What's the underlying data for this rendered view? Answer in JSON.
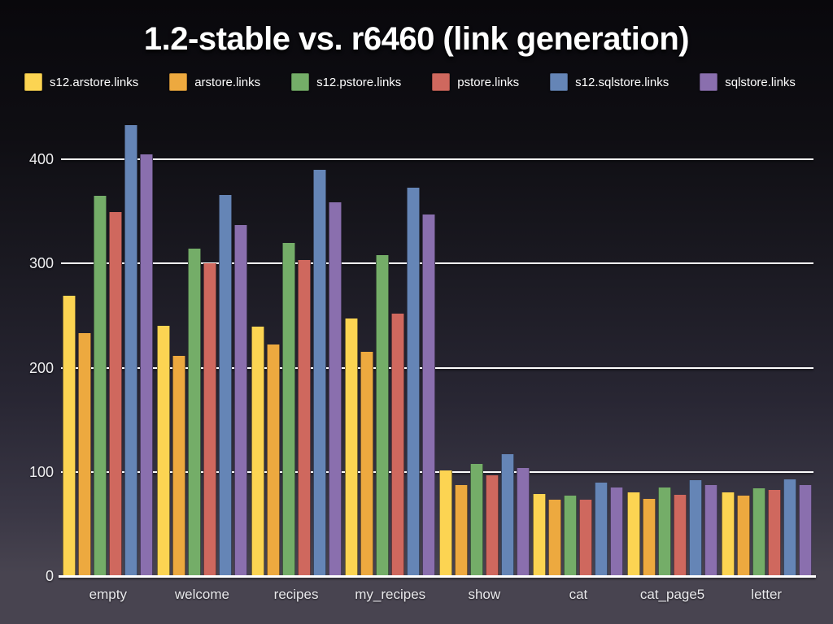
{
  "title": "1.2-stable vs. r6460 (link generation)",
  "colors": {
    "background_top": "#09080c",
    "background_bottom": "#484450",
    "gridline": "#fdfdfd",
    "title_text": "#ffffff",
    "axis_tick_text": "#efeff1",
    "category_text": "#e9e9ec"
  },
  "chart_data": {
    "type": "bar",
    "title": "1.2-stable vs. r6460 (link generation)",
    "xlabel": "",
    "ylabel": "",
    "ylim": [
      0,
      440
    ],
    "y_ticks": [
      0,
      100,
      200,
      300,
      400
    ],
    "grid": "horizontal",
    "legend_position": "top-left",
    "categories": [
      "empty",
      "welcome",
      "recipes",
      "my_recipes",
      "show",
      "cat",
      "cat_page5",
      "letter"
    ],
    "series": [
      {
        "name": "s12.arstore.links",
        "color": "#fcd452",
        "values": [
          269,
          240,
          239,
          247,
          101,
          79,
          80,
          80
        ]
      },
      {
        "name": "arstore.links",
        "color": "#eda93f",
        "values": [
          233,
          211,
          222,
          215,
          87,
          73,
          74,
          77
        ]
      },
      {
        "name": "s12.pstore.links",
        "color": "#74ad68",
        "values": [
          365,
          314,
          320,
          308,
          108,
          77,
          85,
          84
        ]
      },
      {
        "name": "pstore.links",
        "color": "#cf685e",
        "values": [
          349,
          300,
          303,
          252,
          97,
          73,
          78,
          83
        ]
      },
      {
        "name": "s12.sqlstore.links",
        "color": "#6585b6",
        "values": [
          433,
          366,
          390,
          373,
          117,
          90,
          92,
          93
        ]
      },
      {
        "name": "sqlstore.links",
        "color": "#8a6fae",
        "values": [
          405,
          337,
          359,
          347,
          104,
          85,
          87,
          87
        ]
      }
    ]
  }
}
